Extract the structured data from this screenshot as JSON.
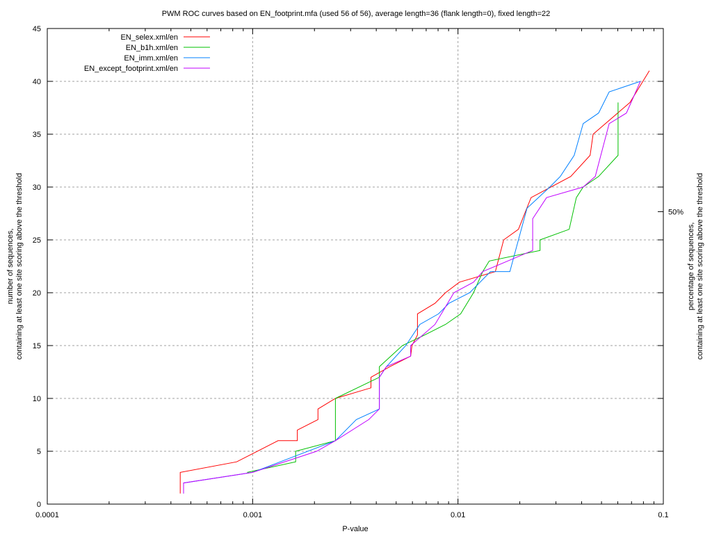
{
  "chart_data": {
    "type": "line",
    "title": "PWM ROC curves based on EN_footprint.mfa (used 56 of 56), average length=36 (flank length=0), fixed length=22",
    "xlabel": "P-value",
    "ylabel": [
      "number of sequences,",
      "containing at least one site scoring above the threshold"
    ],
    "y2label": [
      "percentage of sequences,",
      "containing at least one site scoring above the threshold"
    ],
    "xscale": "log",
    "xlim": [
      0.0001,
      0.1
    ],
    "ylim": [
      0,
      45
    ],
    "x_ticks": [
      "0.0001",
      "0.001",
      "0.01",
      "0.1"
    ],
    "x_tick_values": [
      0.0001,
      0.001,
      0.01,
      0.1
    ],
    "y_ticks": [
      0,
      5,
      10,
      15,
      20,
      25,
      30,
      35,
      40,
      45
    ],
    "y2_ticks": [
      {
        "label": "50%",
        "value": 28
      }
    ],
    "grid": true,
    "legend_position": "top-left",
    "series": [
      {
        "name": "EN_selex.xml/en",
        "color": "#ff0000",
        "points": [
          [
            0.000444,
            1
          ],
          [
            0.000444,
            3
          ],
          [
            0.000836,
            4
          ],
          [
            0.00133,
            6
          ],
          [
            0.00165,
            6
          ],
          [
            0.00165,
            7
          ],
          [
            0.00208,
            8
          ],
          [
            0.00208,
            9
          ],
          [
            0.00253,
            10
          ],
          [
            0.00377,
            11
          ],
          [
            0.00377,
            12
          ],
          [
            0.00465,
            13
          ],
          [
            0.00588,
            14
          ],
          [
            0.00597,
            15
          ],
          [
            0.00635,
            16
          ],
          [
            0.00635,
            18
          ],
          [
            0.00773,
            19
          ],
          [
            0.00869,
            20
          ],
          [
            0.01016,
            21
          ],
          [
            0.0152,
            22
          ],
          [
            0.0167,
            25
          ],
          [
            0.0197,
            26
          ],
          [
            0.0227,
            29
          ],
          [
            0.0354,
            31
          ],
          [
            0.044,
            33
          ],
          [
            0.0455,
            35
          ],
          [
            0.0688,
            38
          ],
          [
            0.0855,
            41
          ]
        ]
      },
      {
        "name": "EN_b1h.xml/en",
        "color": "#00c000",
        "points": [
          [
            0.00094,
            3
          ],
          [
            0.00162,
            4
          ],
          [
            0.00162,
            5
          ],
          [
            0.00253,
            6
          ],
          [
            0.00253,
            10
          ],
          [
            0.00414,
            12
          ],
          [
            0.00414,
            13
          ],
          [
            0.00536,
            15
          ],
          [
            0.00688,
            16
          ],
          [
            0.00869,
            17
          ],
          [
            0.0103,
            18
          ],
          [
            0.0119,
            20
          ],
          [
            0.0132,
            22
          ],
          [
            0.0142,
            23
          ],
          [
            0.0251,
            24
          ],
          [
            0.0251,
            25
          ],
          [
            0.0348,
            26
          ],
          [
            0.0377,
            29
          ],
          [
            0.0407,
            30
          ],
          [
            0.0484,
            31
          ],
          [
            0.0602,
            33
          ],
          [
            0.0602,
            38
          ]
        ]
      },
      {
        "name": "EN_imm.xml/en",
        "color": "#0080ff",
        "points": [
          [
            0.000461,
            1
          ],
          [
            0.000461,
            2
          ],
          [
            0.001,
            3
          ],
          [
            0.00253,
            6
          ],
          [
            0.0032,
            8
          ],
          [
            0.00414,
            9
          ],
          [
            0.00414,
            12
          ],
          [
            0.00448,
            13
          ],
          [
            0.00557,
            15
          ],
          [
            0.00652,
            17
          ],
          [
            0.00804,
            18
          ],
          [
            0.00904,
            19
          ],
          [
            0.0114,
            20
          ],
          [
            0.0144,
            22
          ],
          [
            0.0179,
            22
          ],
          [
            0.0197,
            25
          ],
          [
            0.0217,
            28
          ],
          [
            0.028,
            30
          ],
          [
            0.0315,
            31
          ],
          [
            0.0368,
            33
          ],
          [
            0.0407,
            36
          ],
          [
            0.0484,
            37
          ],
          [
            0.0545,
            39
          ],
          [
            0.0773,
            40
          ]
        ]
      },
      {
        "name": "EN_except_footprint.xml/en",
        "color": "#c000ff",
        "points": [
          [
            0.000461,
            1
          ],
          [
            0.000461,
            2
          ],
          [
            0.001,
            3
          ],
          [
            0.00205,
            5
          ],
          [
            0.00253,
            6
          ],
          [
            0.00368,
            8
          ],
          [
            0.00414,
            9
          ],
          [
            0.00414,
            12
          ],
          [
            0.00448,
            13
          ],
          [
            0.00588,
            14
          ],
          [
            0.00588,
            15
          ],
          [
            0.00773,
            17
          ],
          [
            0.00955,
            20
          ],
          [
            0.0119,
            21
          ],
          [
            0.0132,
            22
          ],
          [
            0.0231,
            24
          ],
          [
            0.0231,
            27
          ],
          [
            0.027,
            29
          ],
          [
            0.0407,
            30
          ],
          [
            0.0466,
            31
          ],
          [
            0.0545,
            36
          ],
          [
            0.0661,
            37
          ],
          [
            0.0773,
            40
          ]
        ]
      }
    ]
  }
}
